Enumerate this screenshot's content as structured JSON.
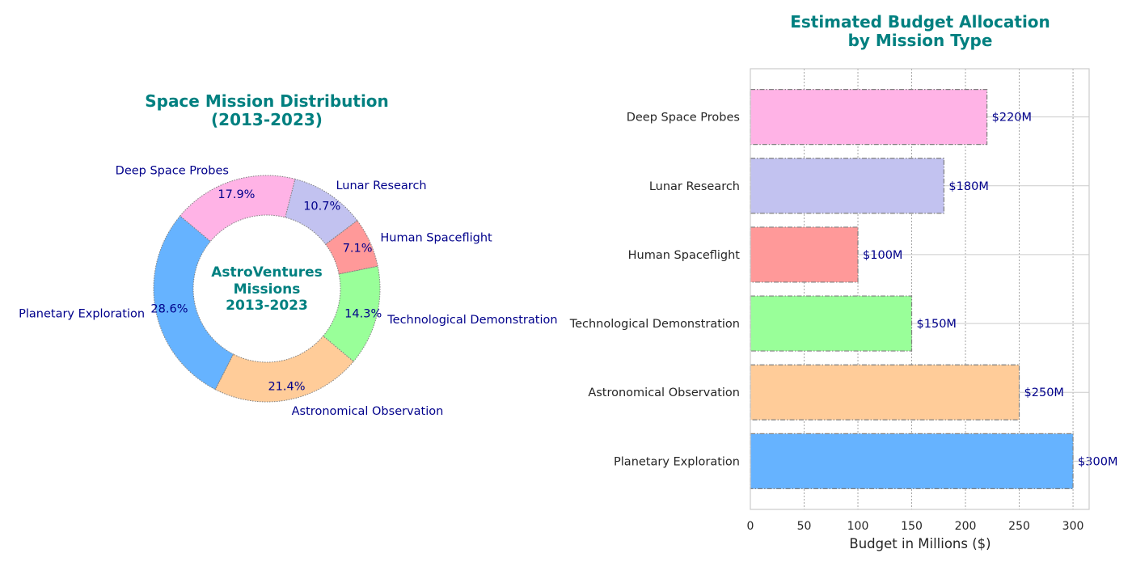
{
  "chart_data": [
    {
      "type": "pie",
      "title_lines": [
        "Space Mission Distribution",
        "(2013-2023)"
      ],
      "center_lines": [
        "AstroVentures",
        "Missions",
        "2013-2023"
      ],
      "categories": [
        "Planetary Exploration",
        "Astronomical Observation",
        "Technological Demonstration",
        "Human Spaceflight",
        "Lunar Research",
        "Deep Space Probes"
      ],
      "values": [
        28.6,
        21.4,
        14.3,
        7.1,
        10.7,
        17.9
      ],
      "percent_labels": [
        "28.6%",
        "21.4%",
        "14.3%",
        "7.1%",
        "10.7%",
        "17.9%"
      ],
      "colors": [
        "#66b3ff",
        "#ffcc99",
        "#99ff99",
        "#ff9999",
        "#c2c2f0",
        "#ffb3e6"
      ],
      "donut": true
    },
    {
      "type": "bar",
      "orientation": "horizontal",
      "title_lines": [
        "Estimated Budget Allocation",
        "by Mission Type"
      ],
      "categories": [
        "Planetary Exploration",
        "Astronomical Observation",
        "Technological Demonstration",
        "Human Spaceflight",
        "Lunar Research",
        "Deep Space Probes"
      ],
      "values": [
        300,
        250,
        150,
        100,
        180,
        220
      ],
      "value_labels": [
        "$300M",
        "$250M",
        "$150M",
        "$100M",
        "$180M",
        "$220M"
      ],
      "colors": [
        "#66b3ff",
        "#ffcc99",
        "#99ff99",
        "#ff9999",
        "#c2c2f0",
        "#ffb3e6"
      ],
      "xlabel": "Budget in Millions ($)",
      "xticks": [
        0,
        50,
        100,
        150,
        200,
        250,
        300
      ],
      "xlim": [
        0,
        315
      ],
      "grid": true
    }
  ]
}
